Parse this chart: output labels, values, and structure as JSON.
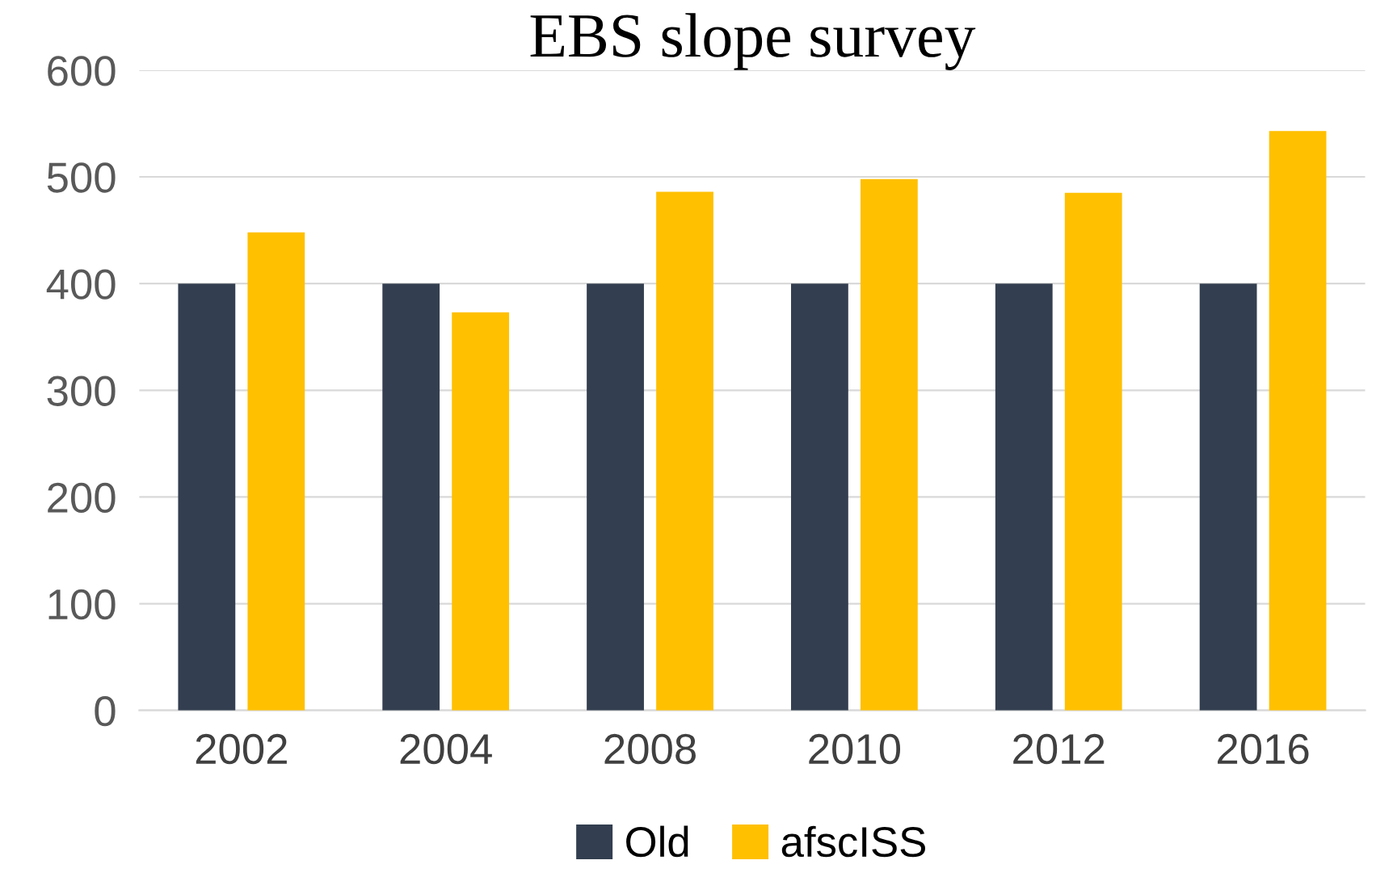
{
  "chart_data": {
    "type": "bar",
    "title": "EBS slope survey",
    "categories": [
      "2002",
      "2004",
      "2008",
      "2010",
      "2012",
      "2016"
    ],
    "series": [
      {
        "name": "Old",
        "color": "#333f50",
        "values": [
          400,
          400,
          400,
          400,
          400,
          400
        ]
      },
      {
        "name": "afscISS",
        "color": "#ffc000",
        "values": [
          448,
          373,
          486,
          498,
          485,
          543
        ]
      }
    ],
    "ylim": [
      0,
      600
    ],
    "yticks": [
      0,
      100,
      200,
      300,
      400,
      500,
      600
    ],
    "grid": "y",
    "legend": "bottom"
  }
}
